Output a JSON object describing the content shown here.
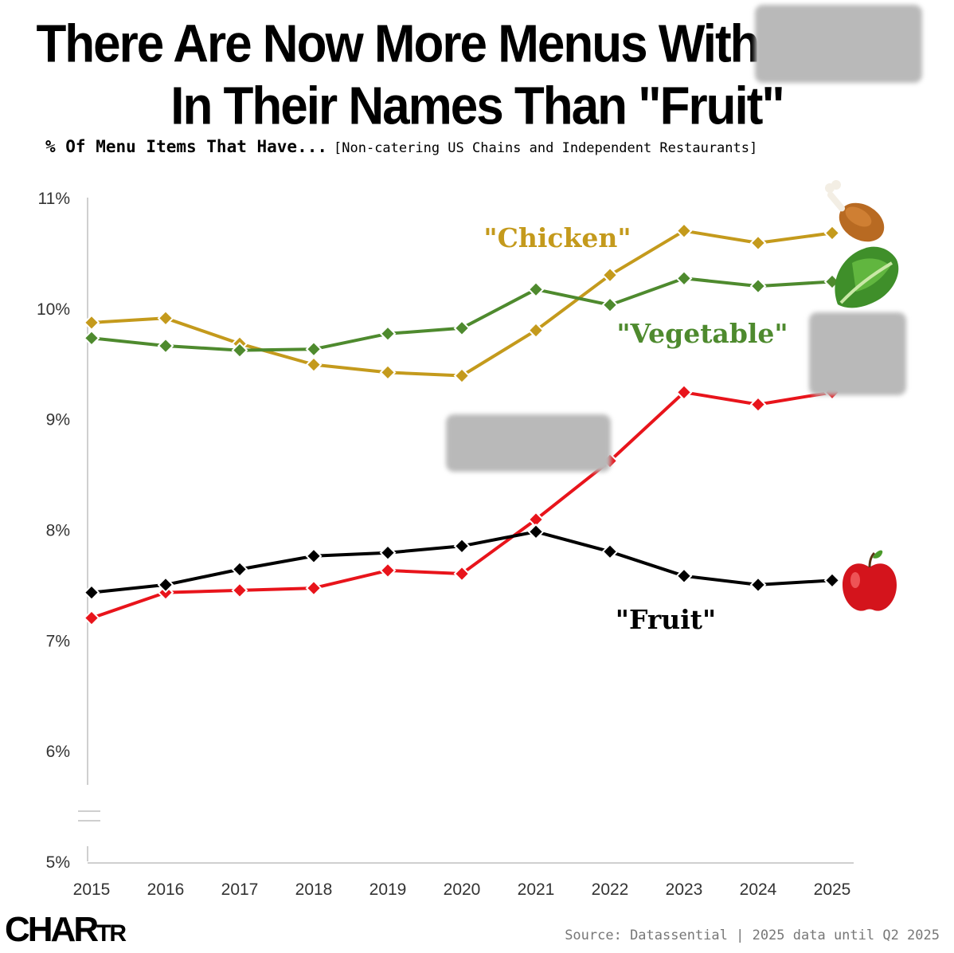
{
  "title": {
    "line1": "There Are Now More Menus With",
    "line2": "In Their Names Than \"Fruit\""
  },
  "subtitle": {
    "main": "% Of Menu Items That Have...",
    "detail": "[Non-catering US Chains and Independent Restaurants]"
  },
  "source": "Source: Datassential | 2025 data until Q2 2025",
  "logo": {
    "big": "CHAR",
    "small": "TR"
  },
  "icons": {
    "chicken": "chicken-leg-icon",
    "vegetable": "lettuce-icon",
    "fruit": "apple-icon"
  },
  "chart_data": {
    "type": "line",
    "x": [
      "2015",
      "2016",
      "2017",
      "2018",
      "2019",
      "2020",
      "2021",
      "2022",
      "2023",
      "2024",
      "2025"
    ],
    "y_ticks": [
      "5%",
      "6%",
      "7%",
      "8%",
      "9%",
      "10%",
      "11%"
    ],
    "ylim": [
      5,
      11
    ],
    "axis_break": true,
    "series": [
      {
        "name": "\"Chicken\"",
        "color": "#c49a1c",
        "values": [
          9.87,
          9.91,
          9.68,
          9.49,
          9.42,
          9.39,
          9.8,
          10.3,
          10.7,
          10.59,
          10.68
        ]
      },
      {
        "name": "\"Vegetable\"",
        "color": "#4e8a2e",
        "values": [
          9.73,
          9.66,
          9.62,
          9.63,
          9.77,
          9.82,
          10.17,
          10.03,
          10.27,
          10.2,
          10.24
        ]
      },
      {
        "name": "",
        "color": "#e8141b",
        "values": [
          7.2,
          7.43,
          7.45,
          7.47,
          7.63,
          7.6,
          8.09,
          8.62,
          9.24,
          9.13,
          9.24
        ]
      },
      {
        "name": "\"Fruit\"",
        "color": "#000000",
        "values": [
          7.43,
          7.5,
          7.64,
          7.76,
          7.79,
          7.85,
          7.98,
          7.8,
          7.58,
          7.5,
          7.54
        ]
      }
    ]
  }
}
